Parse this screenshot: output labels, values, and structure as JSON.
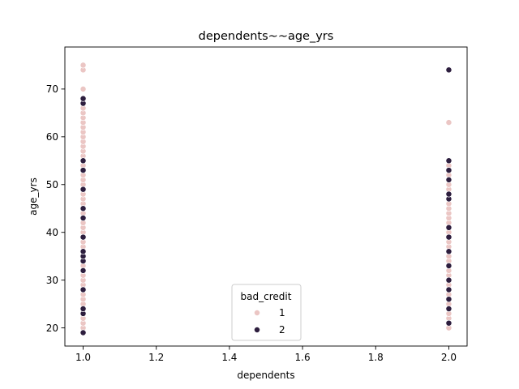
{
  "chart_data": {
    "type": "scatter",
    "title": "dependents~~age_yrs",
    "xlabel": "dependents",
    "ylabel": "age_yrs",
    "xlim": [
      0.95,
      2.05
    ],
    "ylim": [
      16.2,
      78.8
    ],
    "xticks": [
      1.0,
      1.2,
      1.4,
      1.6,
      1.8,
      2.0
    ],
    "xtick_labels": [
      "1.0",
      "1.2",
      "1.4",
      "1.6",
      "1.8",
      "2.0"
    ],
    "yticks": [
      20,
      30,
      40,
      50,
      60,
      70
    ],
    "ytick_labels": [
      "20",
      "30",
      "40",
      "50",
      "60",
      "70"
    ],
    "grid": false,
    "legend": {
      "title": "bad_credit",
      "placement": "lower center"
    },
    "series": [
      {
        "name": "1",
        "color": "#ebc6c4",
        "points": [
          [
            1.0,
            19
          ],
          [
            1.0,
            20
          ],
          [
            1.0,
            21
          ],
          [
            1.0,
            22
          ],
          [
            1.0,
            23
          ],
          [
            1.0,
            24
          ],
          [
            1.0,
            25
          ],
          [
            1.0,
            26
          ],
          [
            1.0,
            27
          ],
          [
            1.0,
            28
          ],
          [
            1.0,
            29
          ],
          [
            1.0,
            30
          ],
          [
            1.0,
            31
          ],
          [
            1.0,
            32
          ],
          [
            1.0,
            33
          ],
          [
            1.0,
            34
          ],
          [
            1.0,
            35
          ],
          [
            1.0,
            36
          ],
          [
            1.0,
            37
          ],
          [
            1.0,
            38
          ],
          [
            1.0,
            39
          ],
          [
            1.0,
            40
          ],
          [
            1.0,
            41
          ],
          [
            1.0,
            42
          ],
          [
            1.0,
            43
          ],
          [
            1.0,
            44
          ],
          [
            1.0,
            45
          ],
          [
            1.0,
            46
          ],
          [
            1.0,
            47
          ],
          [
            1.0,
            48
          ],
          [
            1.0,
            49
          ],
          [
            1.0,
            50
          ],
          [
            1.0,
            51
          ],
          [
            1.0,
            52
          ],
          [
            1.0,
            53
          ],
          [
            1.0,
            54
          ],
          [
            1.0,
            55
          ],
          [
            1.0,
            56
          ],
          [
            1.0,
            57
          ],
          [
            1.0,
            58
          ],
          [
            1.0,
            59
          ],
          [
            1.0,
            60
          ],
          [
            1.0,
            61
          ],
          [
            1.0,
            62
          ],
          [
            1.0,
            63
          ],
          [
            1.0,
            64
          ],
          [
            1.0,
            65
          ],
          [
            1.0,
            66
          ],
          [
            1.0,
            67
          ],
          [
            1.0,
            68
          ],
          [
            1.0,
            70
          ],
          [
            1.0,
            74
          ],
          [
            1.0,
            75
          ],
          [
            2.0,
            20
          ],
          [
            2.0,
            22
          ],
          [
            2.0,
            23
          ],
          [
            2.0,
            25
          ],
          [
            2.0,
            27
          ],
          [
            2.0,
            28
          ],
          [
            2.0,
            29
          ],
          [
            2.0,
            31
          ],
          [
            2.0,
            32
          ],
          [
            2.0,
            34
          ],
          [
            2.0,
            35
          ],
          [
            2.0,
            37
          ],
          [
            2.0,
            38
          ],
          [
            2.0,
            39
          ],
          [
            2.0,
            40
          ],
          [
            2.0,
            42
          ],
          [
            2.0,
            43
          ],
          [
            2.0,
            44
          ],
          [
            2.0,
            45
          ],
          [
            2.0,
            46
          ],
          [
            2.0,
            49
          ],
          [
            2.0,
            50
          ],
          [
            2.0,
            52
          ],
          [
            2.0,
            54
          ],
          [
            2.0,
            63
          ]
        ]
      },
      {
        "name": "2",
        "color": "#2d1e3e",
        "points": [
          [
            1.0,
            19
          ],
          [
            1.0,
            23
          ],
          [
            1.0,
            24
          ],
          [
            1.0,
            28
          ],
          [
            1.0,
            32
          ],
          [
            1.0,
            34
          ],
          [
            1.0,
            35
          ],
          [
            1.0,
            36
          ],
          [
            1.0,
            39
          ],
          [
            1.0,
            43
          ],
          [
            1.0,
            45
          ],
          [
            1.0,
            49
          ],
          [
            1.0,
            53
          ],
          [
            1.0,
            55
          ],
          [
            1.0,
            67
          ],
          [
            1.0,
            68
          ],
          [
            2.0,
            21
          ],
          [
            2.0,
            24
          ],
          [
            2.0,
            26
          ],
          [
            2.0,
            28
          ],
          [
            2.0,
            30
          ],
          [
            2.0,
            33
          ],
          [
            2.0,
            36
          ],
          [
            2.0,
            39
          ],
          [
            2.0,
            41
          ],
          [
            2.0,
            47
          ],
          [
            2.0,
            48
          ],
          [
            2.0,
            51
          ],
          [
            2.0,
            53
          ],
          [
            2.0,
            55
          ],
          [
            2.0,
            74
          ]
        ]
      }
    ]
  }
}
